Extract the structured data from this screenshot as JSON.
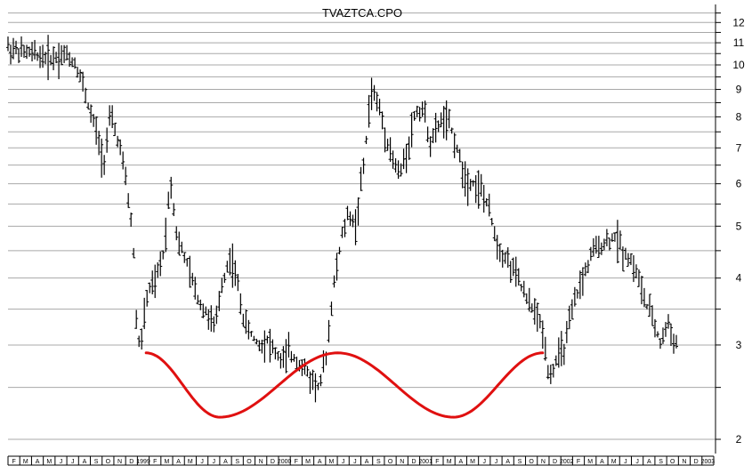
{
  "chart_data": {
    "type": "line",
    "subtype": "ohlc-bar",
    "title": "TVAZTCA.CPO",
    "y_scale": "log",
    "ylim": [
      1.9,
      13.2
    ],
    "y_ticks": [
      2,
      3,
      4,
      5,
      6,
      7,
      8,
      9,
      10,
      11,
      12
    ],
    "y_gridlines": [
      2,
      2.5,
      3,
      3.5,
      4,
      4.5,
      5,
      5.5,
      6,
      6.5,
      7,
      7.5,
      8,
      8.5,
      9,
      9.5,
      10,
      10.5,
      11,
      11.5,
      12,
      12.5,
      13
    ],
    "grid": true,
    "x_labels": [
      "F",
      "M",
      "A",
      "M",
      "J",
      "J",
      "A",
      "S",
      "O",
      "N",
      "D",
      "1999",
      "F",
      "M",
      "A",
      "M",
      "J",
      "J",
      "A",
      "S",
      "O",
      "N",
      "D",
      "2000",
      "F",
      "M",
      "A",
      "M",
      "J",
      "J",
      "A",
      "S",
      "O",
      "N",
      "D",
      "2001",
      "F",
      "M",
      "A",
      "M",
      "J",
      "J",
      "A",
      "S",
      "O",
      "N",
      "D",
      "2002",
      "F",
      "M",
      "A",
      "M",
      "J",
      "J",
      "A",
      "S",
      "O",
      "N",
      "D",
      "2003"
    ],
    "series": [
      {
        "points": [
          [
            0,
            10.8
          ],
          [
            0.5,
            10.6
          ],
          [
            1,
            10.5
          ],
          [
            1.5,
            10.4
          ],
          [
            2,
            10.3
          ],
          [
            2.5,
            10.5
          ],
          [
            3,
            10.1
          ],
          [
            3.3,
            9.4
          ],
          [
            3.6,
            8.4
          ],
          [
            4,
            7.4
          ],
          [
            4.3,
            6.6
          ],
          [
            4.6,
            8.0
          ],
          [
            5,
            7.1
          ],
          [
            5.3,
            6.0
          ],
          [
            5.6,
            4.8
          ],
          [
            5.8,
            3.0
          ],
          [
            6,
            3.1
          ],
          [
            6.3,
            3.8
          ],
          [
            6.6,
            3.9
          ],
          [
            7,
            4.5
          ],
          [
            7.3,
            6.1
          ],
          [
            7.6,
            4.7
          ],
          [
            8,
            4.3
          ],
          [
            8.3,
            3.9
          ],
          [
            8.6,
            3.6
          ],
          [
            9,
            3.4
          ],
          [
            9.3,
            3.2
          ],
          [
            9.6,
            3.9
          ],
          [
            10,
            4.4
          ],
          [
            10.3,
            3.9
          ],
          [
            10.6,
            3.3
          ],
          [
            11,
            3.1
          ],
          [
            11.3,
            3.0
          ],
          [
            11.6,
            3.1
          ],
          [
            12,
            2.9
          ],
          [
            12.3,
            2.8
          ],
          [
            12.6,
            2.9
          ],
          [
            13,
            2.8
          ],
          [
            13.3,
            2.7
          ],
          [
            13.6,
            2.6
          ],
          [
            14,
            2.5
          ],
          [
            14.3,
            2.9
          ],
          [
            14.6,
            3.8
          ],
          [
            15,
            4.8
          ],
          [
            15.3,
            5.3
          ],
          [
            15.6,
            5.0
          ],
          [
            16,
            6.6
          ],
          [
            16.3,
            9.0
          ],
          [
            16.6,
            8.5
          ],
          [
            17,
            7.3
          ],
          [
            17.3,
            6.6
          ],
          [
            17.6,
            6.2
          ],
          [
            18,
            7.2
          ],
          [
            18.3,
            8.2
          ],
          [
            18.6,
            8.3
          ],
          [
            19,
            7.1
          ],
          [
            19.3,
            7.7
          ],
          [
            19.6,
            8.0
          ],
          [
            20,
            7.4
          ],
          [
            20.3,
            6.6
          ],
          [
            20.6,
            6.1
          ],
          [
            21,
            6.0
          ],
          [
            21.3,
            5.8
          ],
          [
            21.6,
            5.3
          ],
          [
            22,
            4.6
          ],
          [
            22.3,
            4.4
          ],
          [
            22.6,
            4.2
          ],
          [
            23,
            3.9
          ],
          [
            23.3,
            3.6
          ],
          [
            23.6,
            3.5
          ],
          [
            24,
            3.2
          ],
          [
            24.3,
            2.6
          ],
          [
            24.6,
            2.8
          ],
          [
            25,
            3.0
          ],
          [
            25.3,
            3.4
          ],
          [
            25.6,
            3.8
          ],
          [
            26,
            4.2
          ],
          [
            26.3,
            4.5
          ],
          [
            26.6,
            4.6
          ],
          [
            27,
            4.7
          ],
          [
            27.3,
            4.8
          ],
          [
            27.6,
            4.5
          ],
          [
            28,
            4.3
          ],
          [
            28.3,
            4.0
          ],
          [
            28.6,
            3.6
          ],
          [
            29,
            3.3
          ],
          [
            29.3,
            3.0
          ],
          [
            29.6,
            3.3
          ],
          [
            30,
            3.0
          ]
        ]
      }
    ],
    "annotations": [
      {
        "type": "trendline-wave",
        "color": "#e01010",
        "points": [
          [
            6.2,
            2.9
          ],
          [
            9.5,
            2.2
          ],
          [
            14.8,
            2.9
          ],
          [
            20.0,
            2.2
          ],
          [
            24.0,
            2.9
          ]
        ]
      }
    ]
  }
}
